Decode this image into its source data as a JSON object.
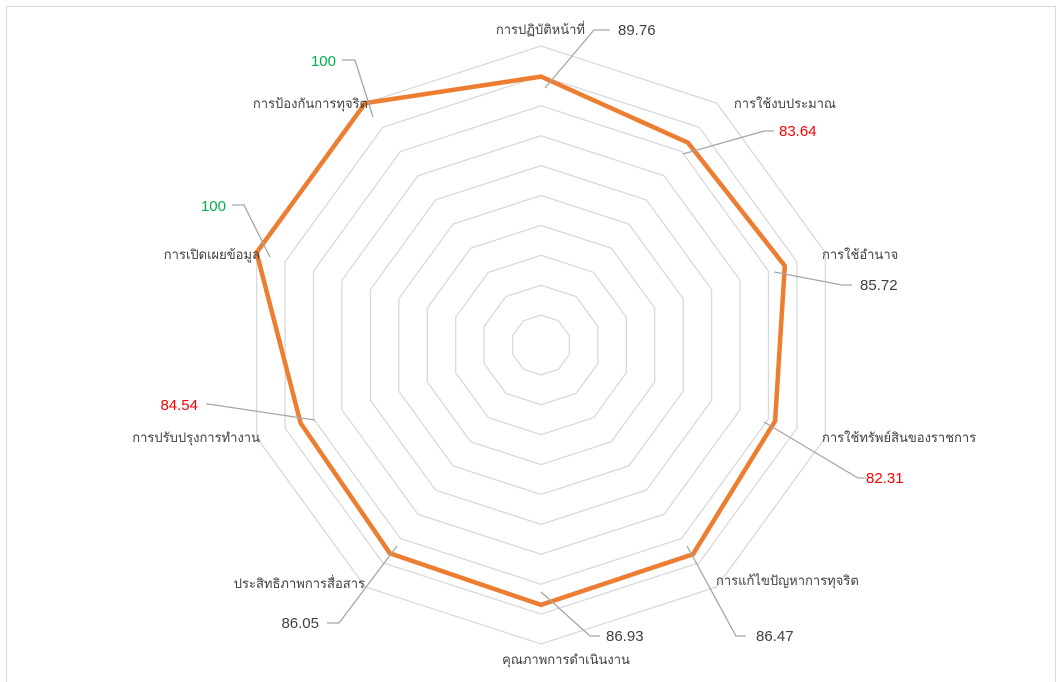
{
  "chart_data": {
    "type": "radar",
    "title": "",
    "rlim": [
      0,
      100
    ],
    "rings": 10,
    "categories": [
      "การปฏิบัติหน้าที่",
      "การใช้งบประมาณ",
      "การใช้อำนาจ",
      "การใช้ทรัพย์สินของราชการ",
      "การแก้ไขปัญหาการทุจริต",
      "คุณภาพการดำเนินงาน",
      "ประสิทธิภาพการสื่อสาร",
      "การปรับปรุงการทำงาน",
      "การเปิดเผยข้อมูล",
      "การป้องกันการทุจริต"
    ],
    "series": [
      {
        "values": [
          89.76,
          83.64,
          85.72,
          82.31,
          86.47,
          86.93,
          86.05,
          84.54,
          100,
          100
        ],
        "labels": [
          "89.76",
          "83.64",
          "85.72",
          "82.31",
          "86.47",
          "86.93",
          "86.05",
          "84.54",
          "100",
          "100"
        ],
        "color": "#ED7D31"
      }
    ],
    "label_colors": [
      "#404040",
      "#FF0000",
      "#404040",
      "#FF0000",
      "#404040",
      "#404040",
      "#404040",
      "#FF0000",
      "#00B050",
      "#00B050"
    ],
    "grid_color": "#D9D9D9",
    "leader_color": "#A6A6A6",
    "grid": true,
    "legend": "none"
  }
}
